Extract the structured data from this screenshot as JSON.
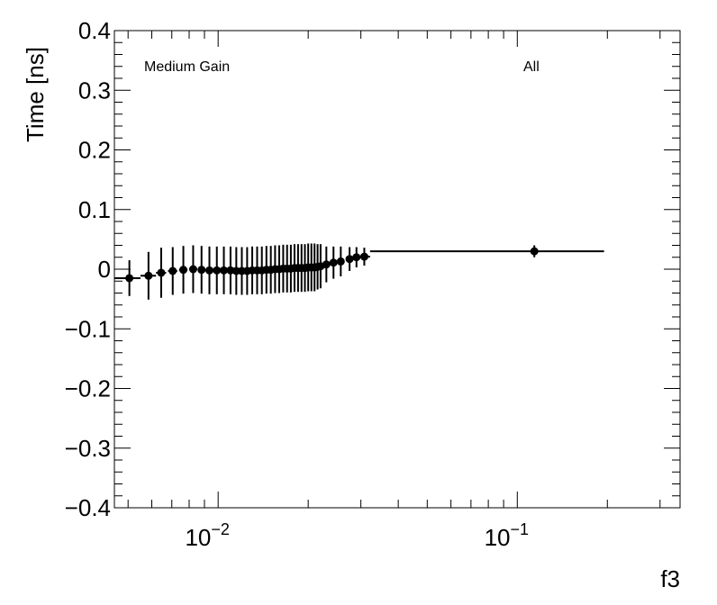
{
  "chart_data": {
    "type": "scatter",
    "title": "",
    "xlabel": "f3",
    "ylabel": "Time [ns]",
    "x_scale": "log",
    "xlim": [
      0.0045,
      0.35
    ],
    "ylim": [
      -0.4,
      0.4
    ],
    "grid": false,
    "annotations": [
      "Medium Gain",
      "All"
    ],
    "y_ticks": [
      {
        "value": 0.4,
        "label": "0.4"
      },
      {
        "value": 0.3,
        "label": "0.3"
      },
      {
        "value": 0.2,
        "label": "0.2"
      },
      {
        "value": 0.1,
        "label": "0.1"
      },
      {
        "value": 0.0,
        "label": "0"
      },
      {
        "value": -0.1,
        "label": "−0.1"
      },
      {
        "value": -0.2,
        "label": "−0.2"
      },
      {
        "value": -0.3,
        "label": "−0.3"
      },
      {
        "value": -0.4,
        "label": "−0.4"
      }
    ],
    "x_ticks": [
      {
        "value": 0.01,
        "base": "10",
        "exp": "−2"
      },
      {
        "value": 0.1,
        "base": "10",
        "exp": "−1"
      }
    ],
    "points": [
      {
        "x": 0.00505,
        "y": -0.015,
        "yerr": 0.03,
        "xlo": 0.0045,
        "xhi": 0.0055
      },
      {
        "x": 0.00585,
        "y": -0.011,
        "yerr": 0.04,
        "xlo": 0.0055,
        "xhi": 0.0062
      },
      {
        "x": 0.00645,
        "y": -0.006,
        "yerr": 0.042,
        "xlo": 0.0062,
        "xhi": 0.0067
      },
      {
        "x": 0.00705,
        "y": -0.003,
        "yerr": 0.04,
        "xlo": 0.0068,
        "xhi": 0.0073
      },
      {
        "x": 0.00765,
        "y": -0.001,
        "yerr": 0.04,
        "xlo": 0.0074,
        "xhi": 0.0079
      },
      {
        "x": 0.00825,
        "y": 0.0,
        "yerr": 0.04,
        "xlo": 0.008,
        "xhi": 0.0085
      },
      {
        "x": 0.0088,
        "y": -0.001,
        "yerr": 0.04
      },
      {
        "x": 0.00935,
        "y": -0.002,
        "yerr": 0.04
      },
      {
        "x": 0.0099,
        "y": -0.002,
        "yerr": 0.04
      },
      {
        "x": 0.01045,
        "y": -0.002,
        "yerr": 0.04
      },
      {
        "x": 0.011,
        "y": -0.002,
        "yerr": 0.04
      },
      {
        "x": 0.0115,
        "y": -0.003,
        "yerr": 0.04
      },
      {
        "x": 0.012,
        "y": -0.003,
        "yerr": 0.04
      },
      {
        "x": 0.0125,
        "y": -0.003,
        "yerr": 0.04
      },
      {
        "x": 0.013,
        "y": -0.002,
        "yerr": 0.04
      },
      {
        "x": 0.0135,
        "y": -0.002,
        "yerr": 0.04
      },
      {
        "x": 0.014,
        "y": -0.002,
        "yerr": 0.04
      },
      {
        "x": 0.0145,
        "y": -0.001,
        "yerr": 0.04
      },
      {
        "x": 0.015,
        "y": -0.001,
        "yerr": 0.04
      },
      {
        "x": 0.0155,
        "y": 0.0,
        "yerr": 0.04
      },
      {
        "x": 0.016,
        "y": 0.0,
        "yerr": 0.04
      },
      {
        "x": 0.0165,
        "y": 0.001,
        "yerr": 0.04
      },
      {
        "x": 0.017,
        "y": 0.001,
        "yerr": 0.04
      },
      {
        "x": 0.0175,
        "y": 0.001,
        "yerr": 0.04
      },
      {
        "x": 0.018,
        "y": 0.002,
        "yerr": 0.04
      },
      {
        "x": 0.0185,
        "y": 0.002,
        "yerr": 0.04
      },
      {
        "x": 0.019,
        "y": 0.002,
        "yerr": 0.04
      },
      {
        "x": 0.0195,
        "y": 0.002,
        "yerr": 0.04
      },
      {
        "x": 0.02,
        "y": 0.003,
        "yerr": 0.04
      },
      {
        "x": 0.0205,
        "y": 0.003,
        "yerr": 0.04
      },
      {
        "x": 0.021,
        "y": 0.003,
        "yerr": 0.04
      },
      {
        "x": 0.0215,
        "y": 0.004,
        "yerr": 0.038
      },
      {
        "x": 0.022,
        "y": 0.005,
        "yerr": 0.037
      },
      {
        "x": 0.023,
        "y": 0.008,
        "yerr": 0.03
      },
      {
        "x": 0.0243,
        "y": 0.011,
        "yerr": 0.027
      },
      {
        "x": 0.0257,
        "y": 0.013,
        "yerr": 0.025
      },
      {
        "x": 0.0275,
        "y": 0.017,
        "yerr": 0.02
      },
      {
        "x": 0.029,
        "y": 0.02,
        "yerr": 0.017
      },
      {
        "x": 0.0308,
        "y": 0.021,
        "yerr": 0.015,
        "xlo": 0.0295,
        "xhi": 0.0322
      },
      {
        "x": 0.114,
        "y": 0.03,
        "yerr": 0.01,
        "xlo": 0.0322,
        "xhi": 0.195
      }
    ]
  }
}
